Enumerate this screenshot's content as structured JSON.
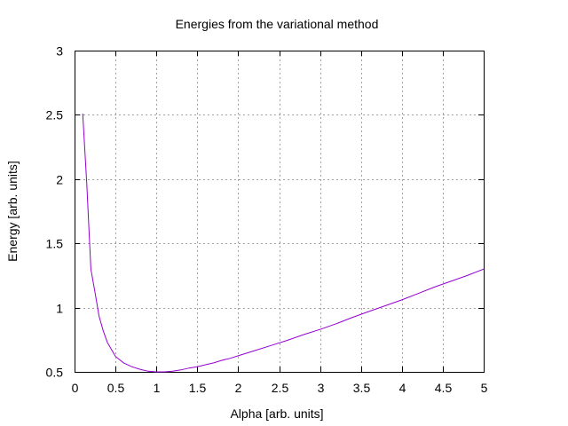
{
  "chart_data": {
    "type": "line",
    "title": "Energies from the variational method",
    "xlabel": "Alpha [arb. units]",
    "ylabel": "Energy [arb. units]",
    "xlim": [
      0,
      5
    ],
    "ylim": [
      0.5,
      3
    ],
    "x_ticks": [
      "0",
      "0.5",
      "1",
      "1.5",
      "2",
      "2.5",
      "3",
      "3.5",
      "4",
      "4.5",
      "5"
    ],
    "y_ticks": [
      "0.5",
      "1",
      "1.5",
      "2",
      "2.5",
      "3"
    ],
    "grid": true,
    "legend": "none",
    "series": [
      {
        "color": "#9400d3",
        "x": [
          0.1,
          0.15,
          0.2,
          0.25,
          0.3,
          0.35,
          0.4,
          0.5,
          0.6,
          0.7,
          0.8,
          0.9,
          1.0,
          1.1,
          1.2,
          1.3,
          1.4,
          1.5,
          1.6,
          1.7,
          1.8,
          1.9,
          2.0,
          2.2,
          2.4,
          2.6,
          2.8,
          3.0,
          3.2,
          3.4,
          3.6,
          3.8,
          4.0,
          4.2,
          4.4,
          4.6,
          4.8,
          5.0
        ],
        "y": [
          2.51,
          1.96,
          1.3,
          1.12,
          0.93,
          0.82,
          0.73,
          0.62,
          0.57,
          0.54,
          0.52,
          0.505,
          0.5,
          0.5,
          0.505,
          0.515,
          0.53,
          0.54,
          0.555,
          0.57,
          0.59,
          0.605,
          0.625,
          0.665,
          0.705,
          0.745,
          0.79,
          0.83,
          0.875,
          0.925,
          0.97,
          1.015,
          1.06,
          1.11,
          1.16,
          1.205,
          1.25,
          1.3
        ]
      }
    ]
  }
}
